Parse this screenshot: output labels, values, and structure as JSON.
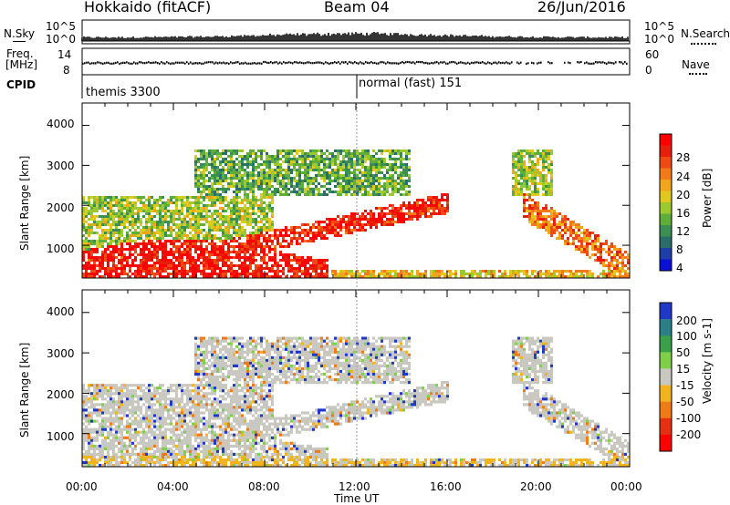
{
  "header": {
    "station": "Hokkaido (fitACF)",
    "beam": "Beam 04",
    "date": "26/Jun/2016"
  },
  "panels": {
    "nsky_label": "N.Sky",
    "nsky_ticks": [
      "10^5",
      "10^0"
    ],
    "nsearch_label": "N.Search",
    "nsearch_ticks": [
      "10^5",
      "10^0"
    ],
    "freq_label_1": "Freq.",
    "freq_label_2": "[MHz]",
    "freq_ticks": [
      "14",
      "8"
    ],
    "nave_label": "Nave",
    "nave_ticks": [
      "60",
      "0"
    ],
    "cpid_label": "CPID",
    "cpid_entries": [
      "themis 3300",
      "normal (fast) 151"
    ]
  },
  "chart_data": [
    {
      "type": "heatmap",
      "title": "",
      "xlabel": "Time UT",
      "ylabel": "Slant Range [km]",
      "x_ticks": [
        "00:00",
        "04:00",
        "08:00",
        "12:00",
        "16:00",
        "20:00",
        "00:00"
      ],
      "y_ticks": [
        "1000",
        "2000",
        "3000",
        "4000"
      ],
      "ylim": [
        180,
        4560
      ],
      "xlim_hours": [
        0,
        24
      ],
      "colorbar": {
        "label": "Power [dB]",
        "ticks": [
          "4",
          "8",
          "12",
          "16",
          "20",
          "24",
          "28"
        ],
        "range": [
          0,
          30
        ],
        "colors": [
          "#0b10d8",
          "#1f3fa8",
          "#2a6e6a",
          "#3a8f52",
          "#5fae3a",
          "#9cc92d",
          "#e0c81d",
          "#f2a51a",
          "#f47a17",
          "#f04a12",
          "#e81d0c",
          "#ff0000"
        ]
      }
    },
    {
      "type": "heatmap",
      "title": "",
      "xlabel": "Time UT",
      "ylabel": "Slant Range [km]",
      "x_ticks": [
        "00:00",
        "04:00",
        "08:00",
        "12:00",
        "16:00",
        "20:00",
        "00:00"
      ],
      "y_ticks": [
        "1000",
        "2000",
        "3000",
        "4000"
      ],
      "ylim": [
        180,
        4560
      ],
      "xlim_hours": [
        0,
        24
      ],
      "colorbar": {
        "label": "Velocity [m s-1]",
        "ticks": [
          "200",
          "100",
          "50",
          "15",
          "-15",
          "-50",
          "-100",
          "-200"
        ],
        "colors": [
          "#2038c8",
          "#2a7f88",
          "#3aa04a",
          "#7ed04a",
          "#c8c8c0",
          "#f2b41c",
          "#f07a14",
          "#e83010",
          "#ff0000"
        ]
      }
    }
  ]
}
